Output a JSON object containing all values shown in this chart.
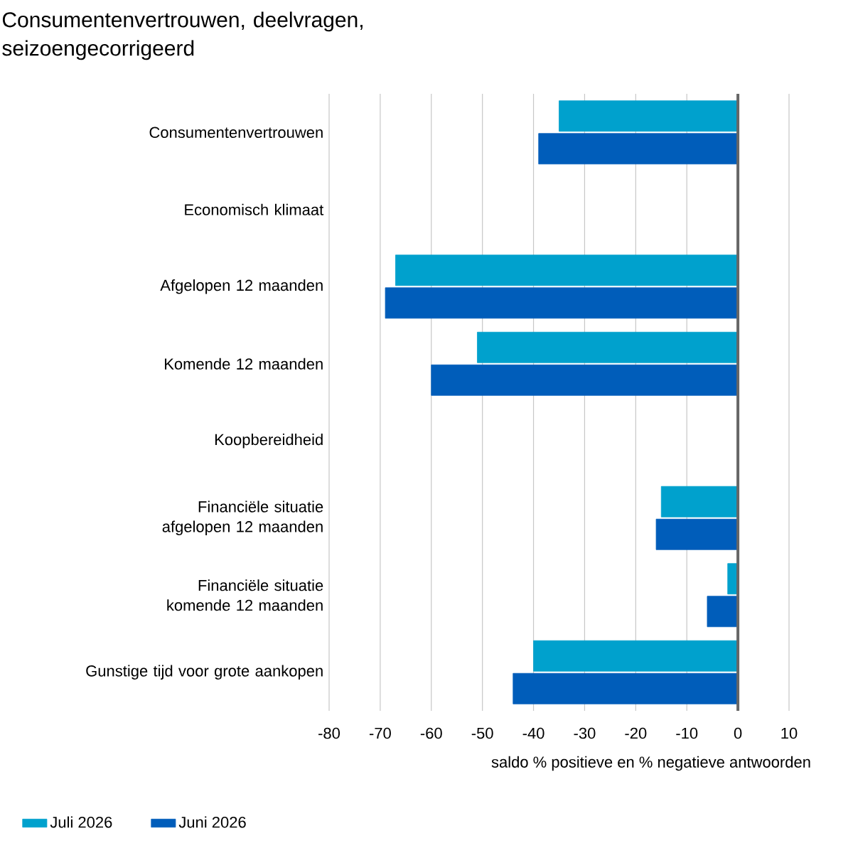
{
  "chart_data": {
    "type": "bar",
    "orientation": "horizontal",
    "title": "Consumentenvertrouwen, deelvragen, seizoengecorrigeerd",
    "xlabel": "saldo % positieve en % negatieve antwoorden",
    "categories": [
      "Consumentenvertrouwen",
      "Economisch klimaat",
      "Afgelopen 12 maanden",
      "Komende 12 maanden",
      "Koopbereidheid",
      "Financiële situatie afgelopen 12 maanden",
      "Financiële situatie komende 12 maanden",
      "Gunstige tijd voor grote aankopen"
    ],
    "series": [
      {
        "name": "Juli 2026",
        "color": "#00a1cd",
        "values": [
          -35,
          null,
          -67,
          -51,
          null,
          -15,
          -2,
          -40
        ]
      },
      {
        "name": "Juni 2026",
        "color": "#005dba",
        "values": [
          -39,
          null,
          -69,
          -60,
          null,
          -16,
          -6,
          -44
        ]
      }
    ],
    "xlim": [
      -80,
      10
    ],
    "xticks": [
      -80,
      -70,
      -60,
      -50,
      -40,
      -30,
      -20,
      -10,
      0,
      10
    ],
    "grid": "x",
    "legend": "bottom left",
    "ref_lines": [
      {
        "axis": "x",
        "value": 0,
        "color": "#666666"
      }
    ]
  }
}
